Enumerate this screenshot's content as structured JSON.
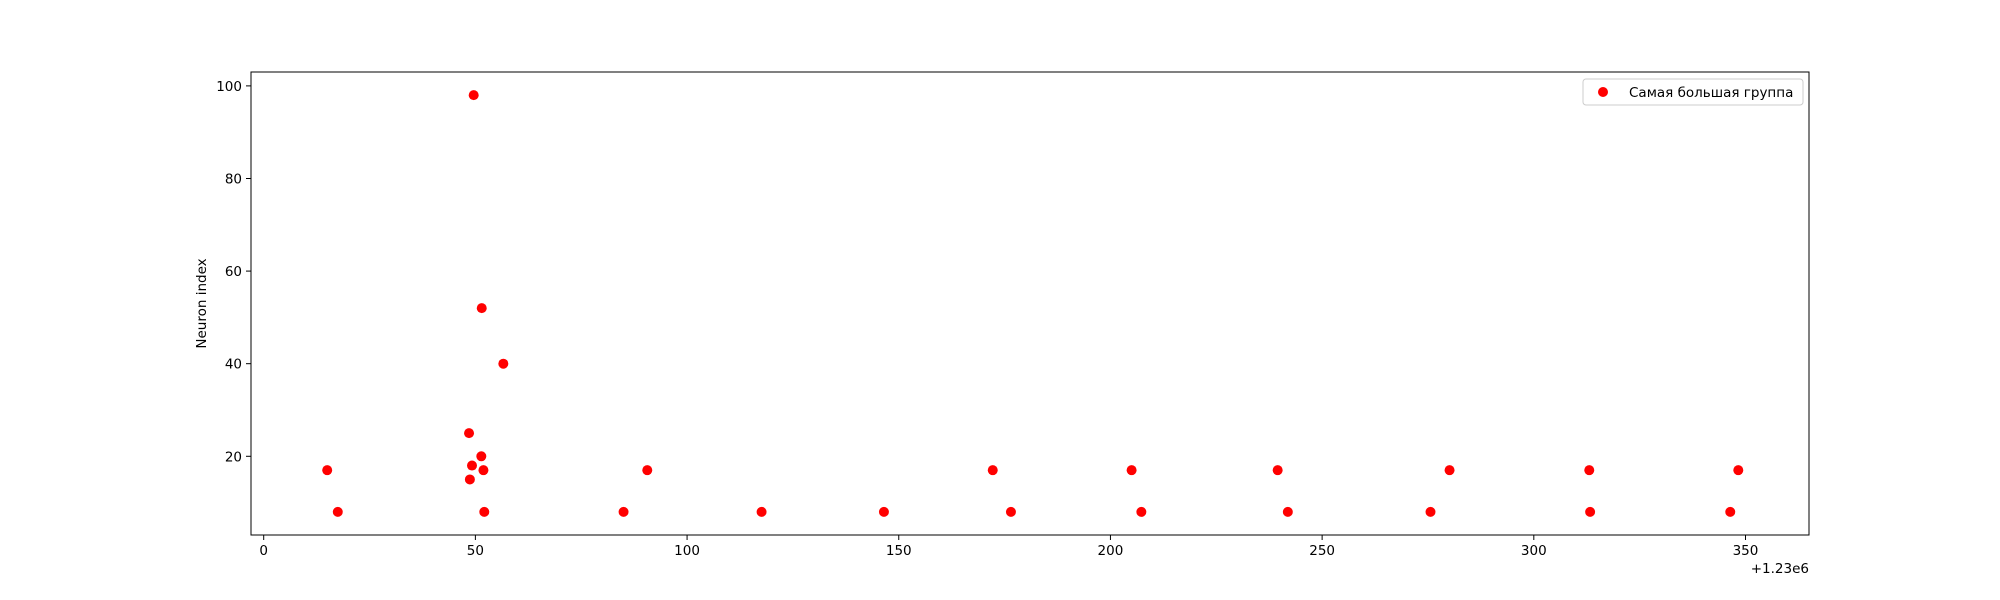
{
  "chart_data": {
    "type": "scatter",
    "title": "",
    "xlabel": "",
    "ylabel": "Neuron index",
    "x_offset_label": "+1.23e6",
    "xlim": [
      -3,
      365
    ],
    "ylim": [
      3,
      103
    ],
    "xticks": [
      0,
      50,
      100,
      150,
      200,
      250,
      300,
      350
    ],
    "yticks": [
      20,
      40,
      60,
      80,
      100
    ],
    "grid": false,
    "legend_position": "top-right",
    "series": [
      {
        "name": "Самая большая группа",
        "color": "#ff0000",
        "marker": "circle",
        "points": [
          {
            "x": 15,
            "y": 17
          },
          {
            "x": 17.5,
            "y": 8
          },
          {
            "x": 48.5,
            "y": 25
          },
          {
            "x": 48.7,
            "y": 15
          },
          {
            "x": 49.2,
            "y": 18
          },
          {
            "x": 49.6,
            "y": 98
          },
          {
            "x": 51.4,
            "y": 20
          },
          {
            "x": 51.5,
            "y": 52
          },
          {
            "x": 51.9,
            "y": 17
          },
          {
            "x": 52.1,
            "y": 8
          },
          {
            "x": 56.6,
            "y": 40
          },
          {
            "x": 85,
            "y": 8
          },
          {
            "x": 90.6,
            "y": 17
          },
          {
            "x": 117.6,
            "y": 8
          },
          {
            "x": 146.5,
            "y": 8
          },
          {
            "x": 172.2,
            "y": 17
          },
          {
            "x": 176.5,
            "y": 8
          },
          {
            "x": 205,
            "y": 17
          },
          {
            "x": 207.3,
            "y": 8
          },
          {
            "x": 239.5,
            "y": 17
          },
          {
            "x": 241.9,
            "y": 8
          },
          {
            "x": 275.6,
            "y": 8
          },
          {
            "x": 280.1,
            "y": 17
          },
          {
            "x": 313.1,
            "y": 17
          },
          {
            "x": 313.3,
            "y": 8
          },
          {
            "x": 346.4,
            "y": 8
          },
          {
            "x": 348.3,
            "y": 17
          }
        ]
      }
    ]
  }
}
